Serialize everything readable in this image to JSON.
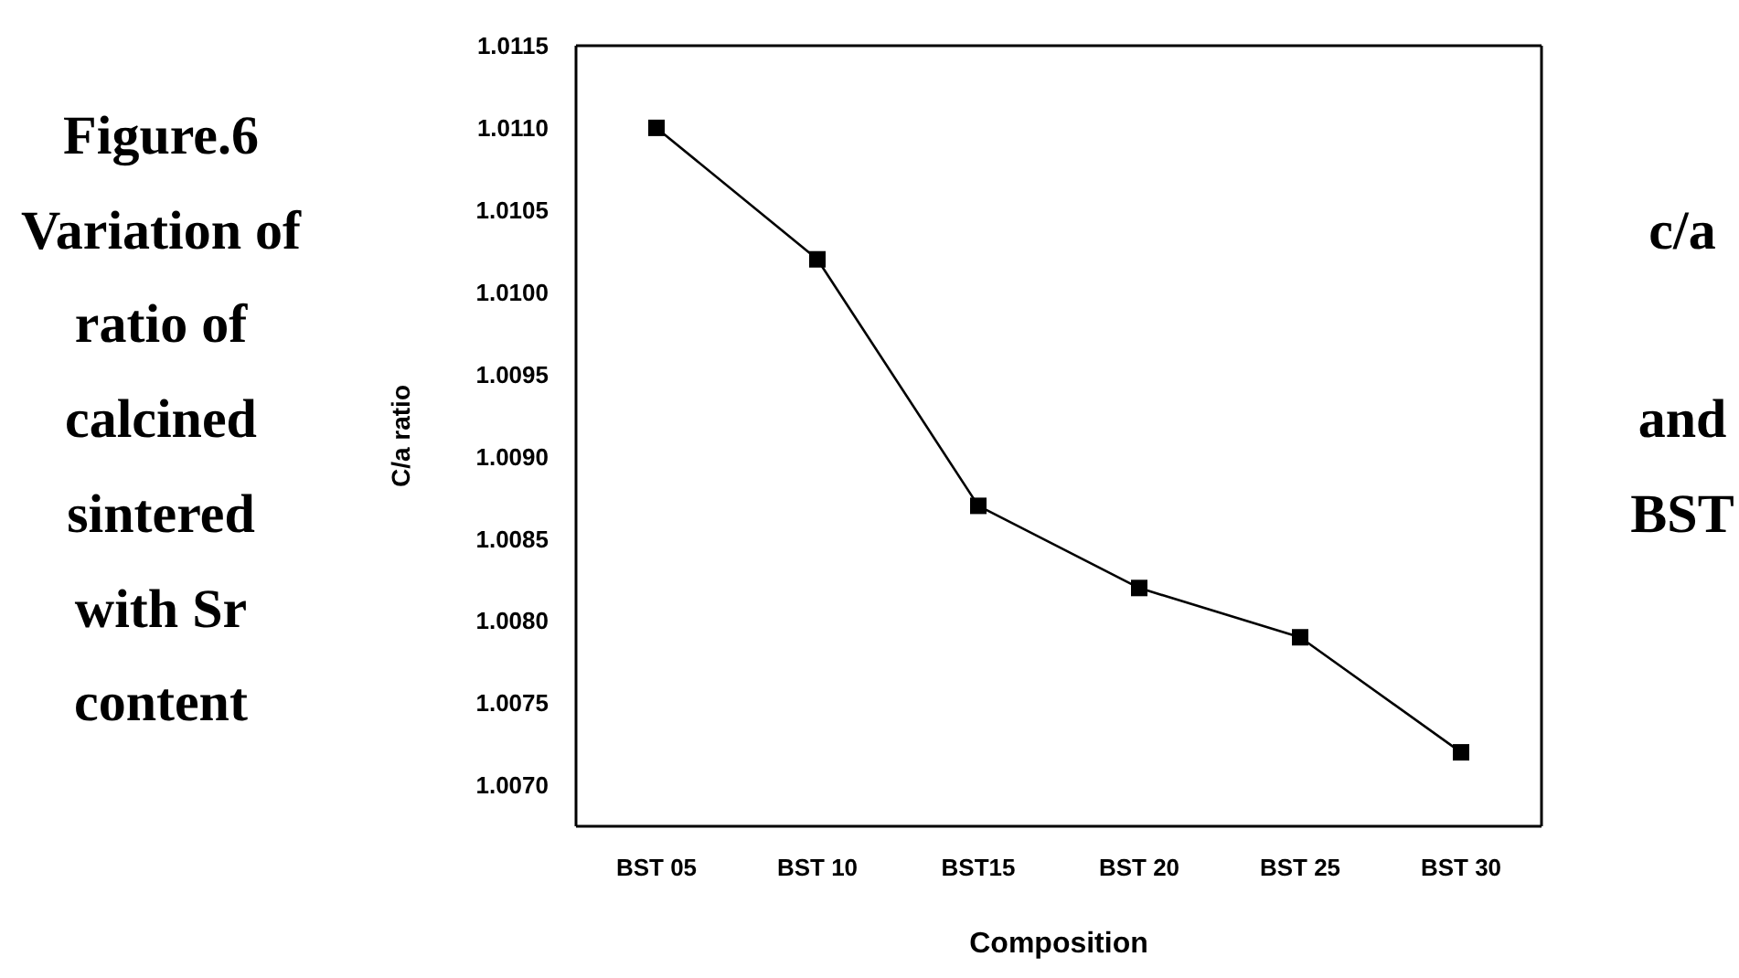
{
  "chart_data": {
    "type": "line",
    "title": "Figure.6",
    "annotations": [
      "Variation of",
      "c/a",
      "ratio of",
      "calcined",
      "and",
      "sintered",
      "BST",
      "with Sr",
      "content"
    ],
    "xlabel": "Composition",
    "ylabel": "C/a ratio",
    "categories": [
      "BST 05",
      "BST 10",
      "BST15",
      "BST 20",
      "BST 25",
      "BST 30"
    ],
    "series": [
      {
        "color": "#000000",
        "values": [
          1.011,
          1.0102,
          1.0087,
          1.0082,
          1.0079,
          1.0072
        ]
      }
    ],
    "ylim": [
      1.00675,
      1.0115
    ],
    "yticks": [
      1.0115,
      {
        "value": 1.011,
        "label": "1.0110"
      },
      1.0105,
      {
        "value": 1.01,
        "label": "1.0100"
      },
      1.0095,
      {
        "value": 1.009,
        "label": "1.0090"
      },
      1.0085,
      {
        "value": 1.008,
        "label": "1.0080"
      },
      1.0075,
      {
        "value": 1.007,
        "label": "1.0070"
      }
    ],
    "marker": "square",
    "line_style": "solid"
  }
}
